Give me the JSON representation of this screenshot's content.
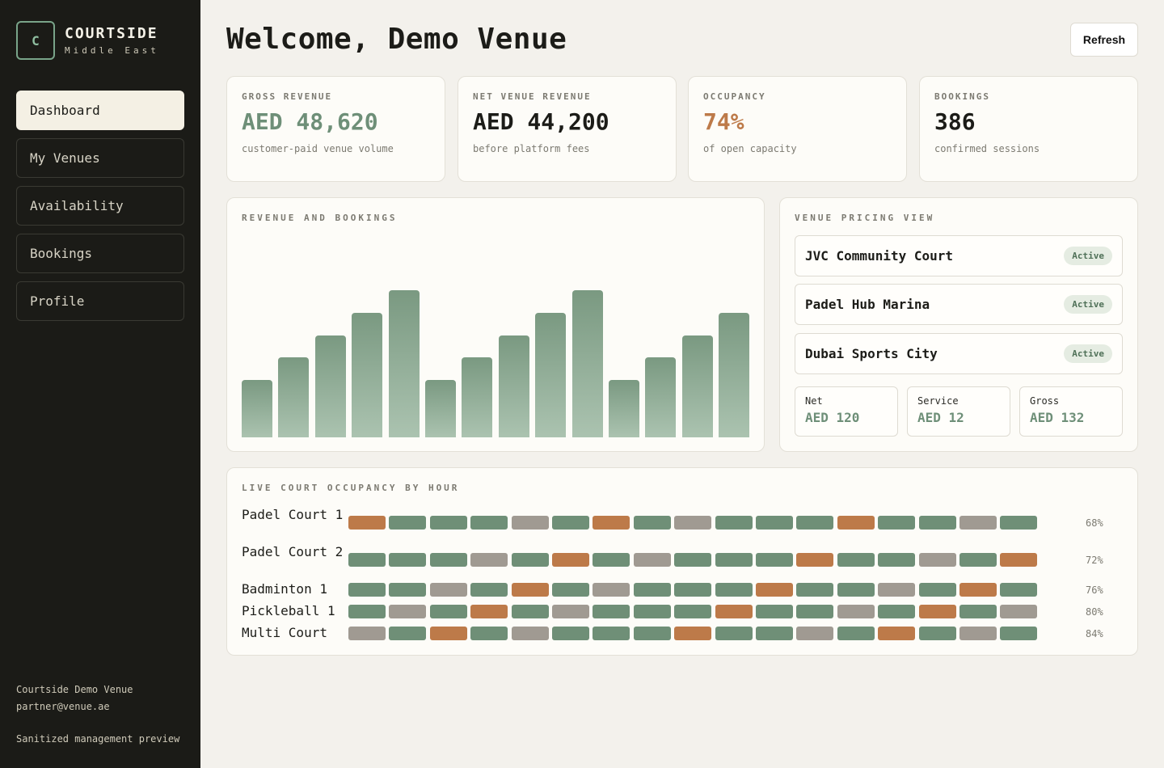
{
  "brand": {
    "logo": "C",
    "name": "COURTSIDE",
    "sub": "Middle East"
  },
  "nav": [
    {
      "label": "Dashboard",
      "active": true
    },
    {
      "label": "My Venues",
      "active": false
    },
    {
      "label": "Availability",
      "active": false
    },
    {
      "label": "Bookings",
      "active": false
    },
    {
      "label": "Profile",
      "active": false
    }
  ],
  "footer": {
    "venue": "Courtside Demo Venue",
    "email": "partner@venue.ae",
    "note": "Sanitized management preview"
  },
  "header": {
    "title": "Welcome, Demo Venue",
    "refresh": "Refresh"
  },
  "stats": [
    {
      "label": "GROSS REVENUE",
      "value": "AED 48,620",
      "sub": "customer-paid venue volume"
    },
    {
      "label": "NET VENUE REVENUE",
      "value": "AED 44,200",
      "sub": "before platform fees"
    },
    {
      "label": "OCCUPANCY",
      "value": "74%",
      "sub": "of open capacity"
    },
    {
      "label": "BOOKINGS",
      "value": "386",
      "sub": "confirmed sessions"
    }
  ],
  "chart": {
    "label": "REVENUE AND BOOKINGS",
    "chart_data": {
      "type": "bar",
      "values": [
        0.38,
        0.53,
        0.68,
        0.83,
        0.98,
        0.38,
        0.53,
        0.68,
        0.83,
        0.98,
        0.38,
        0.53,
        0.68,
        0.83
      ],
      "note_scale": "relative heights, no axis shown"
    }
  },
  "pricing": {
    "label": "VENUE PRICING VIEW",
    "venues": [
      {
        "name": "JVC Community Court",
        "status": "Active"
      },
      {
        "name": "Padel Hub Marina",
        "status": "Active"
      },
      {
        "name": "Dubai Sports City",
        "status": "Active"
      }
    ],
    "breakdown": [
      {
        "label": "Net",
        "value": "AED 120"
      },
      {
        "label": "Service",
        "value": "AED 12"
      },
      {
        "label": "Gross",
        "value": "AED 132"
      }
    ]
  },
  "occupancy": {
    "label": "LIVE COURT OCCUPANCY BY HOUR",
    "courts": [
      {
        "name": "Padel Court 1",
        "pct": "68%",
        "cells": "ogggxgogxgggoggxg"
      },
      {
        "name": "Padel Court 2",
        "pct": "72%",
        "cells": "gggxgogxgggoggxgo"
      },
      {
        "name": "Badminton 1",
        "pct": "76%",
        "cells": "ggxgogxgggoggxgog"
      },
      {
        "name": "Pickleball 1",
        "pct": "80%",
        "cells": "gxgogxgggoggxgogx"
      },
      {
        "name": "Multi Court",
        "pct": "84%",
        "cells": "xgogxgggoggxgogxg"
      }
    ]
  },
  "colors": {
    "green": "#6f8f77",
    "orange": "#bd7a49",
    "gray": "#a09a92"
  }
}
